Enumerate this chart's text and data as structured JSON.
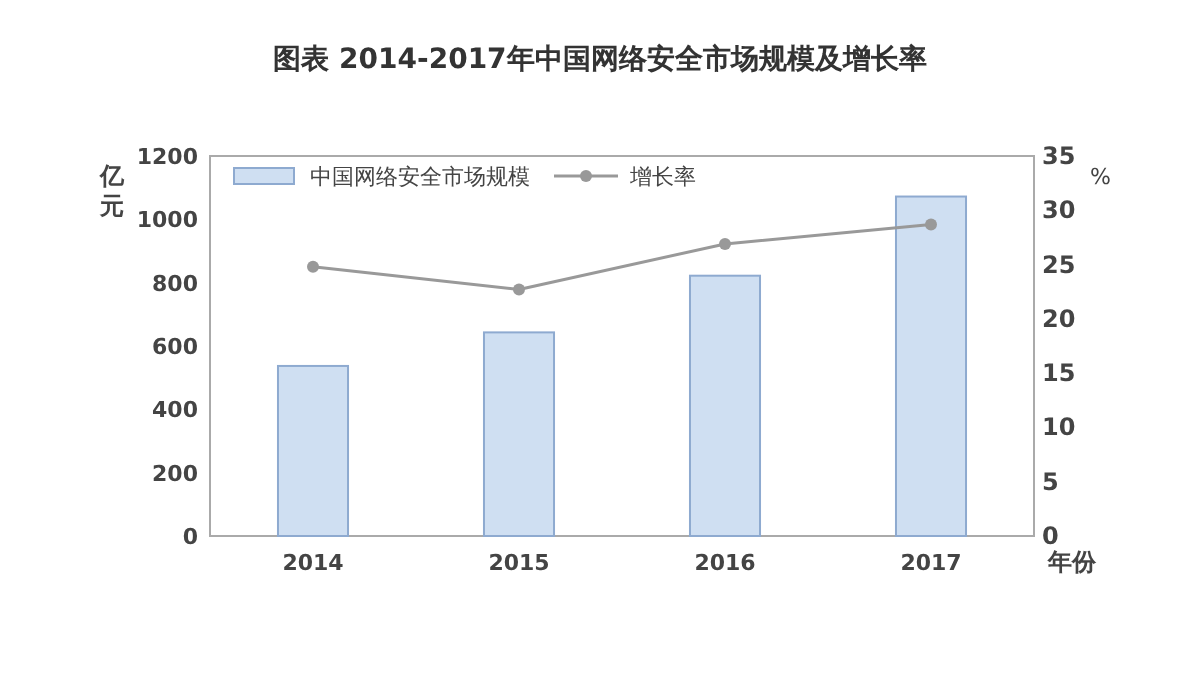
{
  "chart_data": {
    "type": "bar",
    "title": "图表 2014-2017年中国网络安全市场规模及增长率",
    "xlabel": "年份",
    "ylabel": "亿元",
    "y2label": "%",
    "categories": [
      "2014",
      "2015",
      "2016",
      "2017"
    ],
    "series": [
      {
        "name": "中国网络安全市场规模",
        "color": "#cfdff2",
        "values": [
          537,
          643,
          822,
          1072
        ]
      },
      {
        "name": "增长率",
        "type": "line",
        "axis": "y2",
        "color": "#999999",
        "marker": "circle",
        "values": [
          24.8,
          22.7,
          26.9,
          28.7
        ]
      }
    ],
    "ylim": [
      0,
      1200
    ],
    "yticks": [
      0,
      200,
      400,
      600,
      800,
      1000,
      1200
    ],
    "y2lim": [
      0,
      35
    ],
    "y2ticks": [
      0,
      5,
      10,
      15,
      20,
      25,
      30,
      35
    ],
    "grid": false,
    "legend": "top left"
  }
}
